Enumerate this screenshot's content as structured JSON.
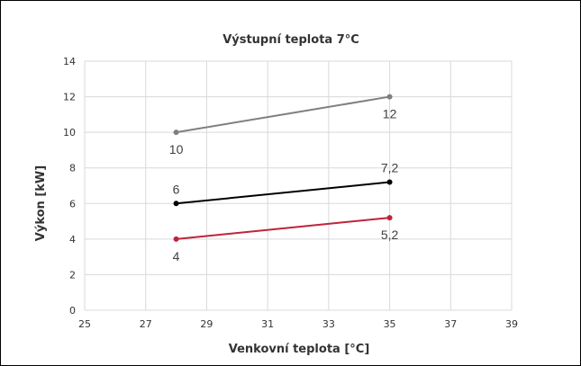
{
  "chart_data": {
    "type": "line",
    "title": "Výstupní teplota 7°C",
    "xlabel": "Venkovní teplota [°C]",
    "ylabel": "Výkon [kW]",
    "xlim": [
      25,
      39
    ],
    "ylim": [
      0,
      14
    ],
    "x_ticks": [
      "25",
      "27",
      "29",
      "31",
      "33",
      "35",
      "37",
      "39"
    ],
    "y_ticks": [
      "0",
      "2",
      "4",
      "6",
      "8",
      "10",
      "12",
      "14"
    ],
    "grid": true,
    "legend": "none",
    "series": [
      {
        "color": "#7f7f7f",
        "points": [
          {
            "x": 28,
            "y": 10,
            "label": "10",
            "label_pos": "below"
          },
          {
            "x": 35,
            "y": 12,
            "label": "12",
            "label_pos": "below"
          }
        ]
      },
      {
        "color": "#000000",
        "points": [
          {
            "x": 28,
            "y": 6,
            "label": "6",
            "label_pos": "above"
          },
          {
            "x": 35,
            "y": 7.2,
            "label": "7,2",
            "label_pos": "above"
          }
        ]
      },
      {
        "color": "#c0233a",
        "points": [
          {
            "x": 28,
            "y": 4,
            "label": "4",
            "label_pos": "below"
          },
          {
            "x": 35,
            "y": 5.2,
            "label": "5,2",
            "label_pos": "below"
          }
        ]
      }
    ]
  }
}
